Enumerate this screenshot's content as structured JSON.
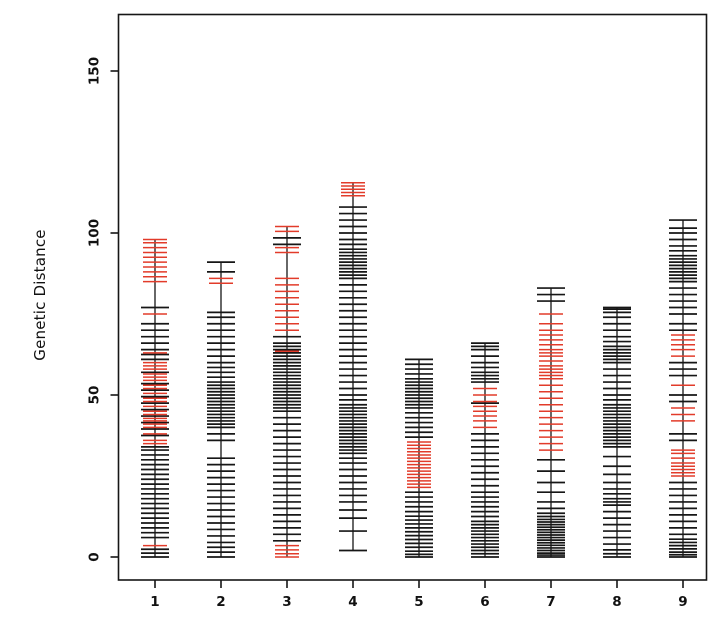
{
  "chart_data": {
    "type": "scatter",
    "subtype": "genetic-linkage-map",
    "title": "",
    "xlabel": "",
    "ylabel": "Genetic Distance",
    "x_tick_labels": [
      "1",
      "2",
      "3",
      "4",
      "5",
      "6",
      "7",
      "8",
      "9"
    ],
    "y_ticks": [
      0,
      50,
      100,
      150
    ],
    "y_tick_labels": [
      "0",
      "50",
      "100",
      "150"
    ],
    "ylim": [
      -7,
      167
    ],
    "grid": false,
    "legend": "none",
    "colors": {
      "marker_black": "#161616",
      "marker_red": "#e23b2a",
      "axis": "#161616"
    },
    "chromosomes": [
      {
        "name": "1",
        "markers_black": [
          0,
          1.2,
          2.4,
          6,
          7.5,
          9,
          10.5,
          12,
          13.5,
          15,
          16.5,
          18,
          19.5,
          21,
          22.5,
          24,
          25.5,
          27,
          28.5,
          30,
          31.5,
          33,
          34,
          37.5,
          39.5,
          41.5,
          43.5,
          45.5,
          47.5,
          49.5,
          51.5,
          53.5,
          57,
          61,
          62.5,
          64,
          66,
          68,
          70,
          72,
          77
        ],
        "markers_red": [
          3.5,
          35,
          36,
          38,
          40,
          41,
          42,
          42.8,
          44,
          45,
          46.5,
          48,
          49,
          50.5,
          52,
          53,
          54.5,
          55.5,
          56.5,
          58,
          59,
          60,
          63,
          75,
          85,
          86.5,
          88,
          89.5,
          91,
          92.5,
          94,
          95.5,
          97,
          98
        ]
      },
      {
        "name": "2",
        "markers_black": [
          0,
          1.5,
          3,
          4.5,
          6.5,
          8.5,
          10.5,
          12.5,
          14.5,
          16.5,
          18.5,
          20.5,
          22.5,
          24.5,
          26.5,
          28.5,
          30.5,
          36,
          38,
          40,
          41,
          42,
          43,
          44,
          45,
          46,
          47,
          48,
          49,
          50,
          51,
          52,
          53,
          54,
          55.5,
          57,
          58.5,
          60,
          62,
          64,
          66,
          68,
          70,
          72,
          74,
          75.5,
          88,
          91
        ],
        "markers_red": [
          84.5,
          86
        ]
      },
      {
        "name": "3",
        "markers_black": [
          5,
          7,
          9,
          11,
          13,
          15,
          17,
          19,
          21,
          23,
          25,
          27,
          29,
          31,
          33,
          35,
          37,
          39,
          41,
          43,
          45,
          46,
          47,
          48,
          49,
          50,
          51,
          52,
          53,
          54,
          55,
          56,
          57,
          58,
          59,
          60,
          61,
          62,
          63,
          64,
          65,
          66,
          68,
          96.5,
          98.5
        ],
        "markers_red": [
          0,
          1,
          2.2,
          3.5,
          63.5,
          70,
          72,
          74,
          76,
          78,
          80,
          82,
          84,
          86,
          94,
          95.5,
          100.5,
          102
        ]
      },
      {
        "name": "4",
        "markers_black": [
          2,
          8,
          12,
          14.5,
          17,
          19,
          21,
          23,
          25,
          27,
          29,
          30.5,
          32,
          33,
          34,
          35,
          36,
          37,
          38,
          39,
          40,
          41,
          42,
          43,
          44,
          45,
          46,
          47,
          48.5,
          50,
          52,
          54,
          56,
          58,
          60,
          62,
          64,
          66,
          68,
          70,
          72,
          74,
          76,
          78,
          80,
          82,
          84,
          86,
          87,
          88,
          89,
          90,
          91,
          92,
          93,
          94,
          95,
          96.5,
          98,
          100,
          102,
          104,
          106,
          108
        ],
        "markers_red": [
          111.5,
          112.5,
          113.5,
          114.5,
          115.5
        ]
      },
      {
        "name": "5",
        "markers_black": [
          0,
          0.8,
          1.8,
          3,
          4.2,
          5.4,
          6.6,
          7.8,
          9,
          10.2,
          11.4,
          12.6,
          14,
          15.5,
          17,
          18.5,
          20,
          37,
          38.5,
          40,
          41.5,
          43,
          44.5,
          46,
          47,
          48,
          49,
          50,
          51,
          52,
          53,
          54,
          55,
          56.5,
          58,
          59.5,
          61
        ],
        "markers_red": [
          21.5,
          22.5,
          23.5,
          24.5,
          25.5,
          26.5,
          27.5,
          28.5,
          29.5,
          30.5,
          31.5,
          32.5,
          33.5,
          34.5,
          35.5
        ]
      },
      {
        "name": "6",
        "markers_black": [
          0,
          1,
          2,
          3,
          4,
          5,
          6,
          7,
          8,
          9,
          10,
          11,
          12.5,
          14,
          15.5,
          17,
          18.5,
          20,
          22,
          24,
          26,
          28,
          30,
          32,
          34,
          36,
          38,
          47.5,
          54,
          55,
          56,
          57,
          58.5,
          60,
          62,
          64,
          65,
          66
        ],
        "markers_red": [
          40,
          42,
          43.5,
          45,
          46.5,
          48,
          50,
          52
        ]
      },
      {
        "name": "7",
        "markers_black": [
          0,
          0.6,
          1.2,
          2,
          2.8,
          3.6,
          4.4,
          5.2,
          6,
          6.8,
          7.6,
          8.4,
          9.2,
          10,
          10.8,
          11.6,
          12.5,
          13.5,
          15,
          17,
          20,
          23,
          26.5,
          30,
          79,
          81,
          83
        ],
        "markers_red": [
          33,
          35,
          37,
          39,
          41,
          43,
          45,
          47,
          49,
          51,
          53,
          55,
          56,
          57,
          58,
          59,
          60.5,
          62,
          63,
          64,
          65.5,
          67,
          68.5,
          70,
          72,
          75
        ]
      },
      {
        "name": "8",
        "markers_black": [
          0,
          1,
          2.2,
          4,
          6,
          8,
          10,
          12,
          14,
          16,
          17,
          18,
          19.5,
          21,
          23,
          25.5,
          28,
          31,
          34,
          35,
          36,
          37,
          38,
          39,
          40,
          41,
          42,
          43,
          44,
          45,
          46,
          47,
          48.5,
          50,
          52,
          54,
          56,
          58,
          60,
          61,
          62,
          63,
          64,
          65,
          66.5,
          68,
          70,
          72,
          74,
          75.5,
          76.5,
          77
        ],
        "markers_red": []
      },
      {
        "name": "9",
        "markers_black": [
          0,
          0.7,
          1.5,
          2.5,
          3.5,
          4.5,
          5.5,
          7,
          9,
          11,
          13,
          15,
          17,
          19,
          21,
          23,
          36,
          38,
          48,
          50,
          56,
          58,
          60,
          70,
          72,
          75,
          77,
          79,
          81,
          83,
          85,
          86,
          87,
          88,
          89,
          90,
          91,
          92,
          93,
          94.5,
          96,
          98,
          100,
          101.5,
          104
        ],
        "markers_red": [
          25,
          26,
          27,
          28,
          29,
          30.5,
          32,
          33,
          42,
          44,
          46,
          53,
          62,
          64,
          65.5,
          67,
          68.5
        ]
      }
    ]
  }
}
